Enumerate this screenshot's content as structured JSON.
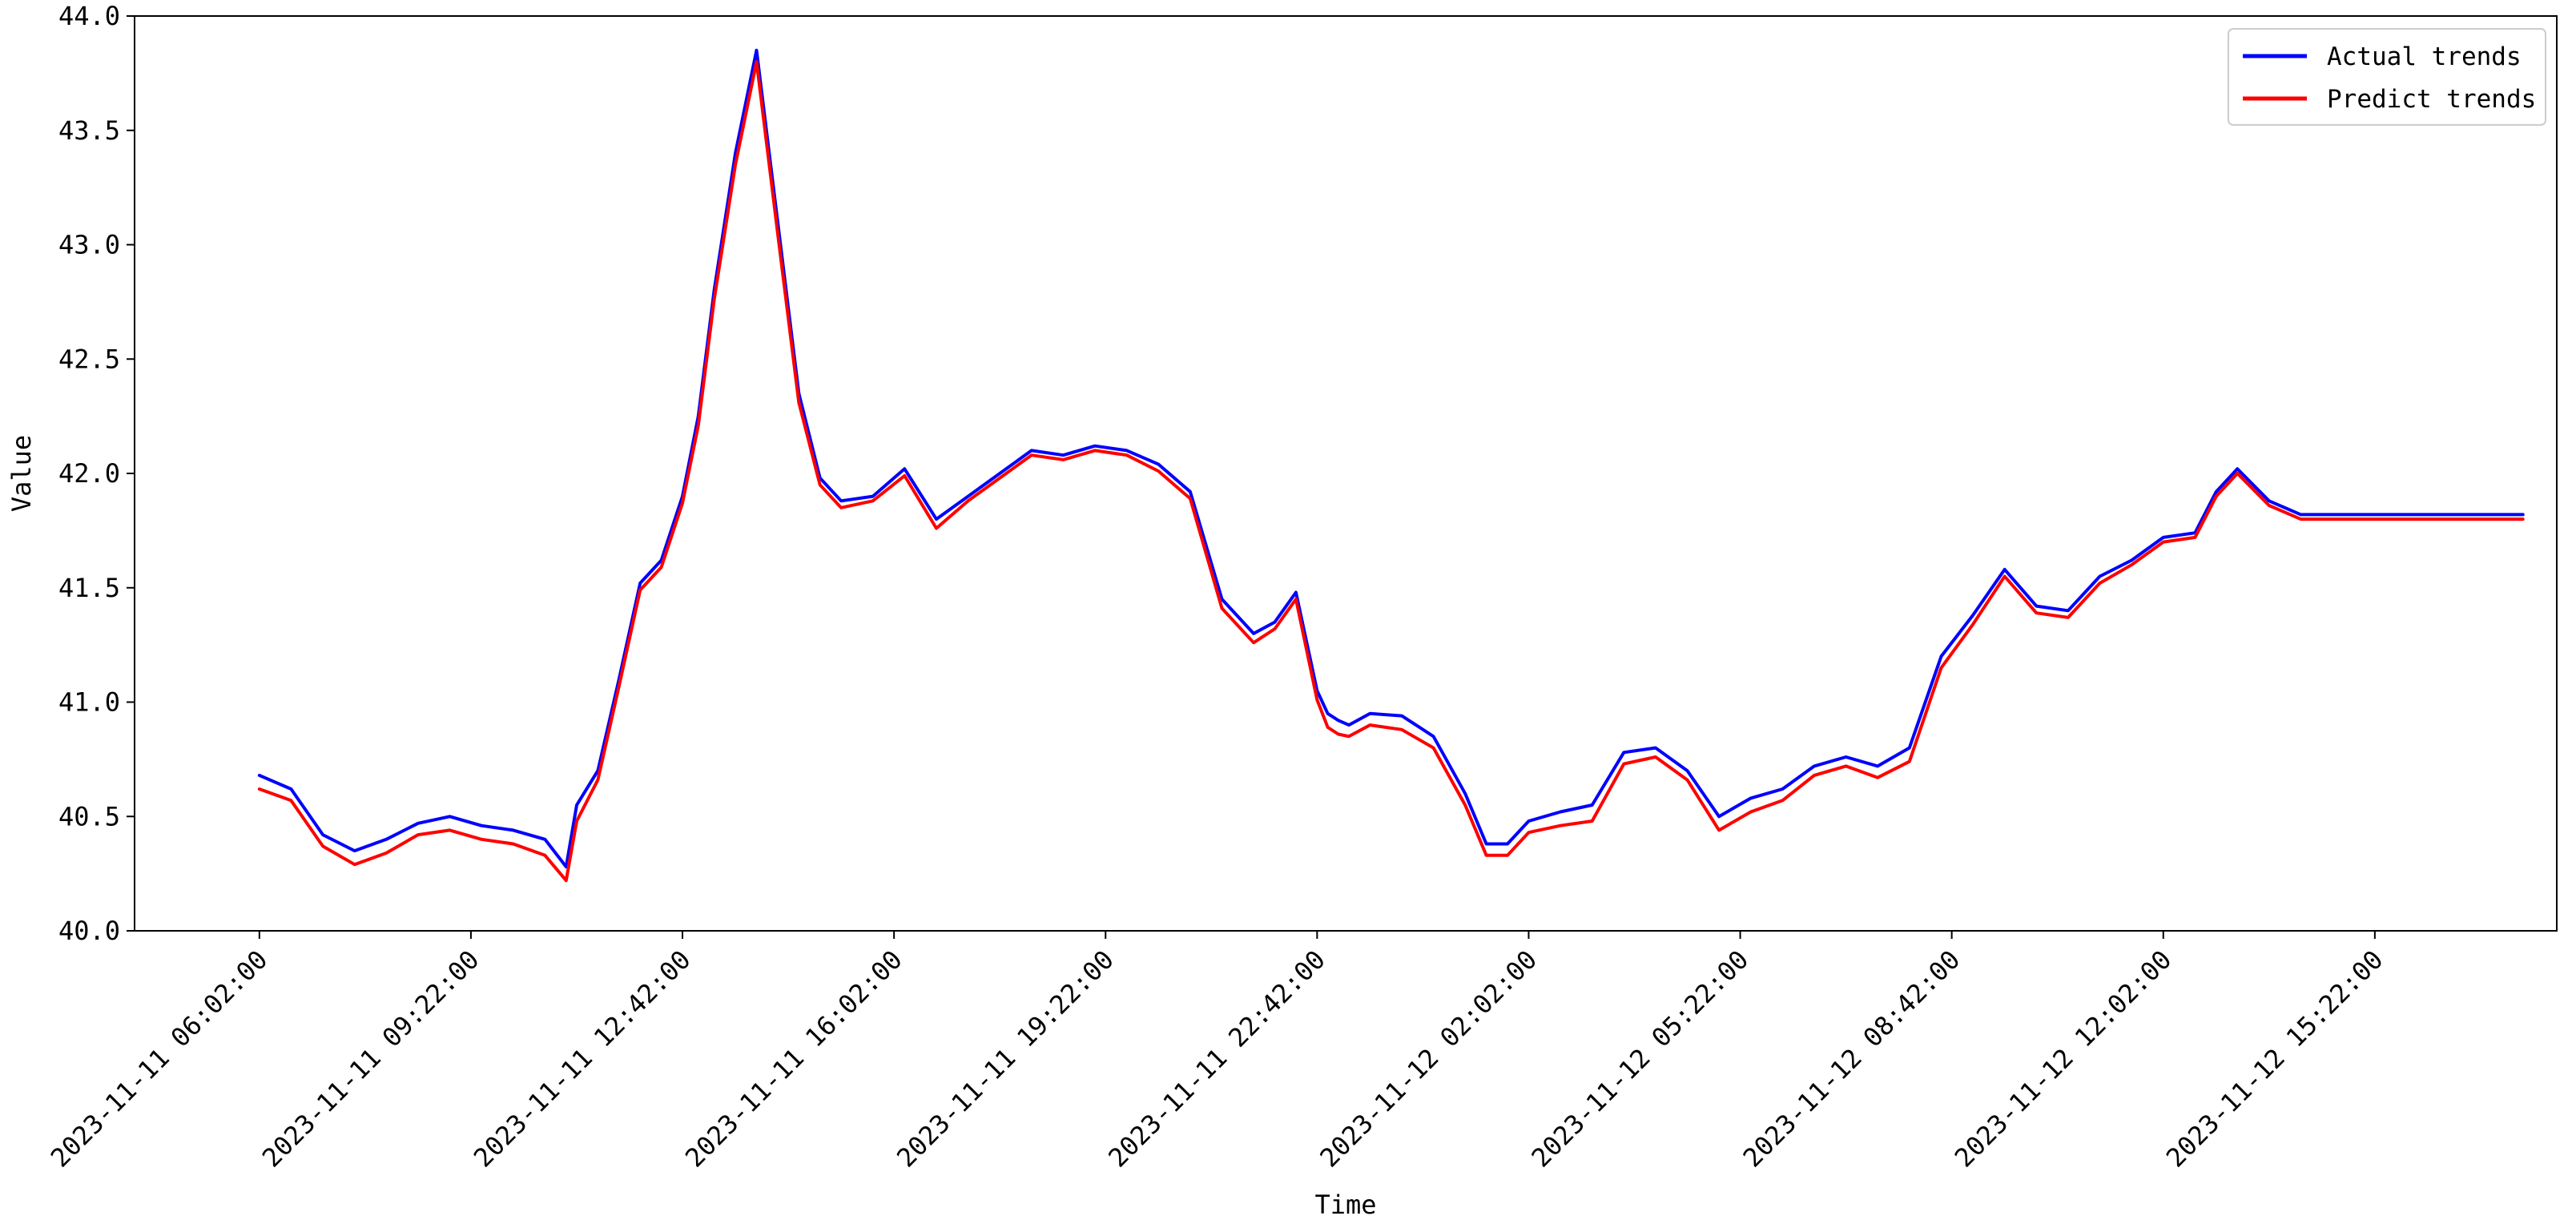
{
  "chart_data": {
    "type": "line",
    "title": "",
    "xlabel": "Time",
    "ylabel": "Value",
    "ylim": [
      40.0,
      44.0
    ],
    "y_ticks": [
      40.0,
      40.5,
      41.0,
      41.5,
      42.0,
      42.5,
      43.0,
      43.5,
      44.0
    ],
    "y_tick_labels": [
      "40.0",
      "40.5",
      "41.0",
      "41.5",
      "42.0",
      "42.5",
      "43.0",
      "43.5",
      "44.0"
    ],
    "x_range": [
      "2023-11-11 04:04:00",
      "2023-11-12 18:14:00"
    ],
    "x_ticks": [
      "2023-11-11 06:02:00",
      "2023-11-11 09:22:00",
      "2023-11-11 12:42:00",
      "2023-11-11 16:02:00",
      "2023-11-11 19:22:00",
      "2023-11-11 22:42:00",
      "2023-11-12 02:02:00",
      "2023-11-12 05:22:00",
      "2023-11-12 08:42:00",
      "2023-11-12 12:02:00",
      "2023-11-12 15:22:00",
      "2023-11-12 18:42:00"
    ],
    "x_tick_labels": [
      "2023-11-11 06:02:00",
      "2023-11-11 09:22:00",
      "2023-11-11 12:42:00",
      "2023-11-11 16:02:00",
      "2023-11-11 19:22:00",
      "2023-11-11 22:42:00",
      "2023-11-12 02:02:00",
      "2023-11-12 05:22:00",
      "2023-11-12 08:42:00",
      "2023-11-12 12:02:00",
      "2023-11-12 15:22:00",
      ""
    ],
    "legend": {
      "position": "top-right"
    },
    "grid": false,
    "series": [
      {
        "name": "Actual trends",
        "color": "#0000ff",
        "x": [
          "2023-11-11 06:02:00",
          "2023-11-11 06:32:00",
          "2023-11-11 07:02:00",
          "2023-11-11 07:32:00",
          "2023-11-11 08:02:00",
          "2023-11-11 08:32:00",
          "2023-11-11 09:02:00",
          "2023-11-11 09:32:00",
          "2023-11-11 10:02:00",
          "2023-11-11 10:32:00",
          "2023-11-11 10:52:00",
          "2023-11-11 11:02:00",
          "2023-11-11 11:22:00",
          "2023-11-11 11:42:00",
          "2023-11-11 12:02:00",
          "2023-11-11 12:22:00",
          "2023-11-11 12:42:00",
          "2023-11-11 12:57:00",
          "2023-11-11 13:12:00",
          "2023-11-11 13:32:00",
          "2023-11-11 13:52:00",
          "2023-11-11 14:12:00",
          "2023-11-11 14:32:00",
          "2023-11-11 14:52:00",
          "2023-11-11 15:12:00",
          "2023-11-11 15:42:00",
          "2023-11-11 16:12:00",
          "2023-11-11 16:42:00",
          "2023-11-11 17:12:00",
          "2023-11-11 17:42:00",
          "2023-11-11 18:12:00",
          "2023-11-11 18:42:00",
          "2023-11-11 19:12:00",
          "2023-11-11 19:42:00",
          "2023-11-11 20:12:00",
          "2023-11-11 20:42:00",
          "2023-11-11 21:12:00",
          "2023-11-11 21:42:00",
          "2023-11-11 22:02:00",
          "2023-11-11 22:22:00",
          "2023-11-11 22:42:00",
          "2023-11-11 22:52:00",
          "2023-11-11 23:02:00",
          "2023-11-11 23:12:00",
          "2023-11-11 23:32:00",
          "2023-11-12 00:02:00",
          "2023-11-12 00:32:00",
          "2023-11-12 01:02:00",
          "2023-11-12 01:22:00",
          "2023-11-12 01:42:00",
          "2023-11-12 02:02:00",
          "2023-11-12 02:32:00",
          "2023-11-12 03:02:00",
          "2023-11-12 03:32:00",
          "2023-11-12 04:02:00",
          "2023-11-12 04:32:00",
          "2023-11-12 05:02:00",
          "2023-11-12 05:32:00",
          "2023-11-12 06:02:00",
          "2023-11-12 06:32:00",
          "2023-11-12 07:02:00",
          "2023-11-12 07:32:00",
          "2023-11-12 08:02:00",
          "2023-11-12 08:32:00",
          "2023-11-12 09:02:00",
          "2023-11-12 09:32:00",
          "2023-11-12 10:02:00",
          "2023-11-12 10:32:00",
          "2023-11-12 11:02:00",
          "2023-11-12 11:32:00",
          "2023-11-12 12:02:00",
          "2023-11-12 12:32:00",
          "2023-11-12 12:52:00",
          "2023-11-12 13:12:00",
          "2023-11-12 13:42:00",
          "2023-11-12 14:12:00",
          "2023-11-12 14:42:00",
          "2023-11-12 15:12:00",
          "2023-11-12 15:42:00",
          "2023-11-12 16:12:00",
          "2023-11-12 16:42:00",
          "2023-11-12 17:12:00",
          "2023-11-12 17:32:00",
          "2023-11-12 17:42:00"
        ],
        "y": [
          40.68,
          40.62,
          40.42,
          40.35,
          40.4,
          40.47,
          40.5,
          40.46,
          40.44,
          40.4,
          40.28,
          40.55,
          40.7,
          41.1,
          41.52,
          41.62,
          41.9,
          42.25,
          42.8,
          43.4,
          43.85,
          43.1,
          42.35,
          41.98,
          41.88,
          41.9,
          42.02,
          41.8,
          41.9,
          42.0,
          42.1,
          42.08,
          42.12,
          42.1,
          42.04,
          41.92,
          41.45,
          41.3,
          41.35,
          41.48,
          41.05,
          40.95,
          40.92,
          40.9,
          40.95,
          40.94,
          40.85,
          40.6,
          40.38,
          40.38,
          40.48,
          40.52,
          40.55,
          40.78,
          40.8,
          40.7,
          40.5,
          40.58,
          40.62,
          40.72,
          40.76,
          40.72,
          40.8,
          41.2,
          41.38,
          41.58,
          41.42,
          41.4,
          41.55,
          41.62,
          41.72,
          41.74,
          41.92,
          42.02,
          41.88,
          41.82,
          41.82,
          41.82,
          41.82,
          41.82,
          41.82,
          41.82,
          41.82,
          41.82
        ]
      },
      {
        "name": "Predict trends",
        "color": "#ff0000",
        "x": [
          "2023-11-11 06:02:00",
          "2023-11-11 06:32:00",
          "2023-11-11 07:02:00",
          "2023-11-11 07:32:00",
          "2023-11-11 08:02:00",
          "2023-11-11 08:32:00",
          "2023-11-11 09:02:00",
          "2023-11-11 09:32:00",
          "2023-11-11 10:02:00",
          "2023-11-11 10:32:00",
          "2023-11-11 10:52:00",
          "2023-11-11 11:02:00",
          "2023-11-11 11:22:00",
          "2023-11-11 11:42:00",
          "2023-11-11 12:02:00",
          "2023-11-11 12:22:00",
          "2023-11-11 12:42:00",
          "2023-11-11 12:57:00",
          "2023-11-11 13:12:00",
          "2023-11-11 13:32:00",
          "2023-11-11 13:52:00",
          "2023-11-11 14:12:00",
          "2023-11-11 14:32:00",
          "2023-11-11 14:52:00",
          "2023-11-11 15:12:00",
          "2023-11-11 15:42:00",
          "2023-11-11 16:12:00",
          "2023-11-11 16:42:00",
          "2023-11-11 17:12:00",
          "2023-11-11 17:42:00",
          "2023-11-11 18:12:00",
          "2023-11-11 18:42:00",
          "2023-11-11 19:12:00",
          "2023-11-11 19:42:00",
          "2023-11-11 20:12:00",
          "2023-11-11 20:42:00",
          "2023-11-11 21:12:00",
          "2023-11-11 21:42:00",
          "2023-11-11 22:02:00",
          "2023-11-11 22:22:00",
          "2023-11-11 22:42:00",
          "2023-11-11 22:52:00",
          "2023-11-11 23:02:00",
          "2023-11-11 23:12:00",
          "2023-11-11 23:32:00",
          "2023-11-12 00:02:00",
          "2023-11-12 00:32:00",
          "2023-11-12 01:02:00",
          "2023-11-12 01:22:00",
          "2023-11-12 01:42:00",
          "2023-11-12 02:02:00",
          "2023-11-12 02:32:00",
          "2023-11-12 03:02:00",
          "2023-11-12 03:32:00",
          "2023-11-12 04:02:00",
          "2023-11-12 04:32:00",
          "2023-11-12 05:02:00",
          "2023-11-12 05:32:00",
          "2023-11-12 06:02:00",
          "2023-11-12 06:32:00",
          "2023-11-12 07:02:00",
          "2023-11-12 07:32:00",
          "2023-11-12 08:02:00",
          "2023-11-12 08:32:00",
          "2023-11-12 09:02:00",
          "2023-11-12 09:32:00",
          "2023-11-12 10:02:00",
          "2023-11-12 10:32:00",
          "2023-11-12 11:02:00",
          "2023-11-12 11:32:00",
          "2023-11-12 12:02:00",
          "2023-11-12 12:32:00",
          "2023-11-12 12:52:00",
          "2023-11-12 13:12:00",
          "2023-11-12 13:42:00",
          "2023-11-12 14:12:00",
          "2023-11-12 14:42:00",
          "2023-11-12 15:12:00",
          "2023-11-12 15:42:00",
          "2023-11-12 16:12:00",
          "2023-11-12 16:42:00",
          "2023-11-12 17:12:00",
          "2023-11-12 17:32:00",
          "2023-11-12 17:42:00"
        ],
        "y": [
          40.62,
          40.57,
          40.37,
          40.29,
          40.34,
          40.42,
          40.44,
          40.4,
          40.38,
          40.33,
          40.22,
          40.48,
          40.66,
          41.07,
          41.49,
          41.59,
          41.87,
          42.21,
          42.76,
          43.35,
          43.8,
          43.05,
          42.31,
          41.95,
          41.85,
          41.88,
          41.99,
          41.76,
          41.88,
          41.98,
          42.08,
          42.06,
          42.1,
          42.08,
          42.01,
          41.89,
          41.41,
          41.26,
          41.32,
          41.45,
          41.01,
          40.89,
          40.86,
          40.85,
          40.9,
          40.88,
          40.8,
          40.55,
          40.33,
          40.33,
          40.43,
          40.46,
          40.48,
          40.73,
          40.76,
          40.66,
          40.44,
          40.52,
          40.57,
          40.68,
          40.72,
          40.67,
          40.74,
          41.15,
          41.34,
          41.55,
          41.39,
          41.37,
          41.52,
          41.6,
          41.7,
          41.72,
          41.9,
          42.0,
          41.86,
          41.8,
          41.8,
          41.8,
          41.8,
          41.8,
          41.8,
          41.8,
          41.8,
          41.8
        ]
      }
    ]
  }
}
